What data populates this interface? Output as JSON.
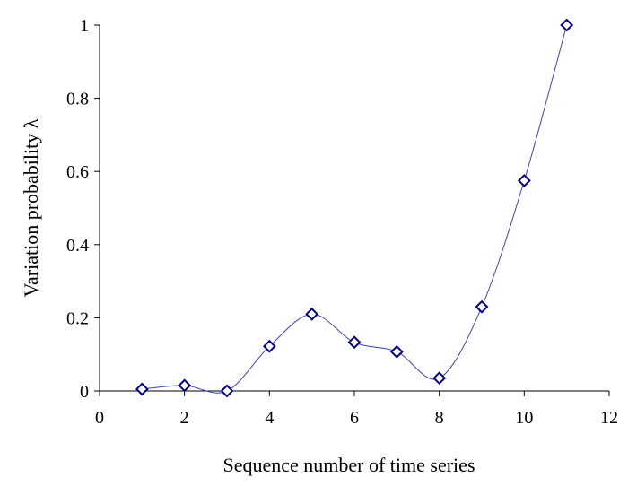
{
  "chart_data": {
    "type": "scatter",
    "xlabel": "Sequence number of time series",
    "ylabel": "Variation probability λ",
    "xlim": [
      0,
      12
    ],
    "ylim": [
      0,
      1
    ],
    "xticks": [
      "0",
      "2",
      "4",
      "6",
      "8",
      "10",
      "12"
    ],
    "yticks": [
      "0",
      "0.2",
      "0.4",
      "0.6",
      "0.8",
      "1"
    ],
    "grid": false,
    "series": [
      {
        "x": [
          1,
          2,
          3,
          4,
          5,
          6,
          7,
          8,
          9,
          10,
          11
        ],
        "y": [
          0.005,
          0.015,
          0.0,
          0.122,
          0.21,
          0.133,
          0.107,
          0.035,
          0.23,
          0.575,
          1.0
        ],
        "marker": "diamond-open",
        "line": "smooth",
        "color": "#00008B",
        "line_color": "#4040C0"
      }
    ]
  }
}
